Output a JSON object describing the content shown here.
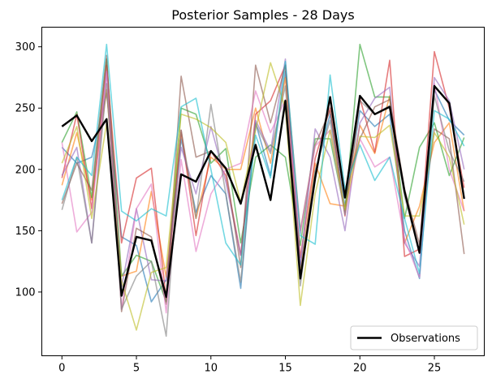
{
  "chart_data": {
    "type": "line",
    "title": "Posterior Samples - 28 Days",
    "xlabel": "",
    "ylabel": "",
    "xlim": [
      -1.35,
      28.35
    ],
    "ylim": [
      48,
      316
    ],
    "xticks": [
      0,
      5,
      10,
      15,
      20,
      25
    ],
    "yticks": [
      100,
      150,
      200,
      250,
      300
    ],
    "grid": false,
    "legend_position": "bottom-right",
    "x": [
      0,
      1,
      2,
      3,
      4,
      5,
      6,
      7,
      8,
      9,
      10,
      11,
      12,
      13,
      14,
      15,
      16,
      17,
      18,
      19,
      20,
      21,
      22,
      23,
      24,
      25,
      26,
      27
    ],
    "observations": {
      "name": "Observations",
      "color": "#000000",
      "values": [
        235,
        244,
        223,
        241,
        97,
        145,
        142,
        96,
        196,
        190,
        215,
        201,
        172,
        220,
        175,
        256,
        111,
        193,
        259,
        177,
        260,
        245,
        251,
        182,
        132,
        268,
        254,
        176
      ]
    },
    "samples": [
      {
        "color": "#1f77b4",
        "values": [
          218,
          205,
          210,
          262,
          145,
          138,
          92,
          110,
          225,
          165,
          195,
          180,
          103,
          238,
          195,
          280,
          120,
          198,
          245,
          170,
          248,
          235,
          245,
          150,
          111,
          265,
          240,
          228
        ]
      },
      {
        "color": "#ff7f0e",
        "values": [
          187,
          230,
          175,
          265,
          113,
          117,
          182,
          112,
          230,
          160,
          210,
          200,
          200,
          250,
          205,
          275,
          115,
          205,
          172,
          170,
          236,
          213,
          260,
          140,
          170,
          222,
          238,
          166
        ]
      },
      {
        "color": "#2ca02c",
        "values": [
          222,
          247,
          177,
          290,
          113,
          130,
          125,
          92,
          250,
          245,
          205,
          217,
          140,
          210,
          220,
          210,
          138,
          225,
          225,
          165,
          302,
          259,
          259,
          160,
          218,
          238,
          195,
          226
        ]
      },
      {
        "color": "#d62728",
        "values": [
          193,
          245,
          168,
          285,
          140,
          193,
          201,
          95,
          232,
          146,
          215,
          195,
          130,
          245,
          256,
          285,
          128,
          209,
          250,
          162,
          258,
          214,
          289,
          129,
          135,
          296,
          250,
          185
        ]
      },
      {
        "color": "#9467bd",
        "values": [
          195,
          218,
          140,
          280,
          104,
          168,
          110,
          109,
          218,
          180,
          235,
          190,
          130,
          240,
          215,
          290,
          122,
          233,
          210,
          150,
          238,
          258,
          267,
          140,
          121,
          275,
          256,
          200
        ]
      },
      {
        "color": "#8c564b",
        "values": [
          172,
          205,
          183,
          293,
          84,
          152,
          145,
          90,
          276,
          210,
          215,
          201,
          120,
          285,
          238,
          285,
          150,
          220,
          248,
          180,
          225,
          251,
          257,
          184,
          139,
          233,
          225,
          131
        ]
      },
      {
        "color": "#e377c2",
        "values": [
          222,
          149,
          165,
          280,
          86,
          168,
          188,
          83,
          208,
          133,
          180,
          200,
          205,
          264,
          230,
          257,
          148,
          219,
          232,
          163,
          225,
          202,
          210,
          143,
          112,
          270,
          200,
          166
        ]
      },
      {
        "color": "#7f7f7f",
        "values": [
          167,
          210,
          140,
          270,
          86,
          113,
          125,
          64,
          232,
          160,
          253,
          180,
          108,
          237,
          213,
          268,
          105,
          199,
          240,
          163,
          256,
          245,
          252,
          178,
          132,
          260,
          215,
          190
        ]
      },
      {
        "color": "#bcbd22",
        "values": [
          205,
          235,
          160,
          238,
          109,
          69,
          116,
          120,
          245,
          241,
          234,
          222,
          173,
          232,
          287,
          250,
          89,
          180,
          232,
          167,
          227,
          226,
          236,
          162,
          162,
          230,
          210,
          155
        ]
      },
      {
        "color": "#17becf",
        "values": [
          175,
          210,
          195,
          302,
          166,
          158,
          168,
          162,
          251,
          258,
          200,
          140,
          122,
          228,
          193,
          288,
          146,
          139,
          277,
          184,
          220,
          191,
          210,
          160,
          115,
          248,
          241,
          219
        ]
      }
    ]
  }
}
